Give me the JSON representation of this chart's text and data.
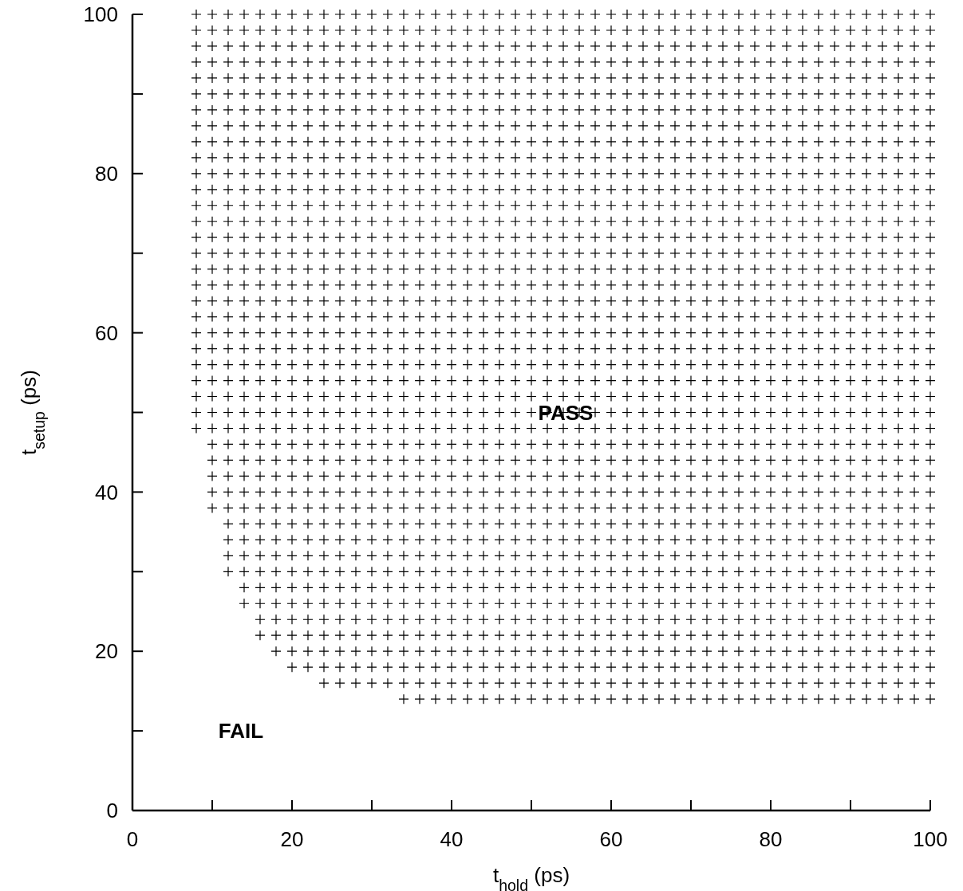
{
  "chart_data": {
    "type": "scatter",
    "xlabel": "t$_{hold}$ (ps)",
    "ylabel": "t$_{setup}$ (ps)",
    "marker": "cross",
    "grid": false,
    "xlim": [
      0,
      100
    ],
    "ylim": [
      0,
      100
    ],
    "xticks": [
      0,
      {
        "value": 10,
        "label": null
      },
      20,
      {
        "value": 30,
        "label": null
      },
      40,
      {
        "value": 50,
        "label": null
      },
      60,
      {
        "value": 70,
        "label": null
      },
      80,
      {
        "value": 90,
        "label": null
      },
      100
    ],
    "yticks": [
      0,
      {
        "value": 10,
        "label": null
      },
      20,
      {
        "value": 30,
        "label": null
      },
      40,
      {
        "value": 50,
        "label": null
      },
      60,
      {
        "value": 70,
        "label": null
      },
      80,
      {
        "value": 90,
        "label": null
      },
      100
    ],
    "annotations": [
      "PASS",
      "FAIL"
    ],
    "x": [
      8,
      10,
      12,
      14,
      16,
      18,
      20,
      22,
      24,
      26,
      28,
      30,
      32,
      34,
      36,
      38,
      40,
      42,
      44,
      46,
      48,
      50,
      52,
      54,
      56,
      58,
      60,
      62,
      64,
      66,
      68,
      70,
      72,
      74,
      76,
      78,
      80,
      82,
      84,
      86,
      88,
      90,
      92,
      94,
      96,
      98,
      100
    ],
    "series": [
      {
        "color": "#000000",
        "values": [
          100,
          100,
          100,
          100,
          100,
          100,
          100,
          100,
          100,
          100,
          100,
          100,
          100,
          100,
          100,
          100,
          100,
          100,
          100,
          100,
          100,
          100,
          100,
          100,
          100,
          100,
          100,
          100,
          100,
          100,
          100,
          100,
          100,
          100,
          100,
          100,
          100,
          100,
          100,
          100,
          100,
          100,
          100,
          100,
          100,
          100,
          100
        ]
      },
      {
        "color": "#000000",
        "values": [
          98,
          98,
          98,
          98,
          98,
          98,
          98,
          98,
          98,
          98,
          98,
          98,
          98,
          98,
          98,
          98,
          98,
          98,
          98,
          98,
          98,
          98,
          98,
          98,
          98,
          98,
          98,
          98,
          98,
          98,
          98,
          98,
          98,
          98,
          98,
          98,
          98,
          98,
          98,
          98,
          98,
          98,
          98,
          98,
          98,
          98,
          98
        ]
      },
      {
        "color": "#000000",
        "values": [
          96,
          96,
          96,
          96,
          96,
          96,
          96,
          96,
          96,
          96,
          96,
          96,
          96,
          96,
          96,
          96,
          96,
          96,
          96,
          96,
          96,
          96,
          96,
          96,
          96,
          96,
          96,
          96,
          96,
          96,
          96,
          96,
          96,
          96,
          96,
          96,
          96,
          96,
          96,
          96,
          96,
          96,
          96,
          96,
          96,
          96,
          96
        ]
      },
      {
        "color": "#000000",
        "values": [
          94,
          94,
          94,
          94,
          94,
          94,
          94,
          94,
          94,
          94,
          94,
          94,
          94,
          94,
          94,
          94,
          94,
          94,
          94,
          94,
          94,
          94,
          94,
          94,
          94,
          94,
          94,
          94,
          94,
          94,
          94,
          94,
          94,
          94,
          94,
          94,
          94,
          94,
          94,
          94,
          94,
          94,
          94,
          94,
          94,
          94,
          94
        ]
      },
      {
        "color": "#000000",
        "values": [
          92,
          92,
          92,
          92,
          92,
          92,
          92,
          92,
          92,
          92,
          92,
          92,
          92,
          92,
          92,
          92,
          92,
          92,
          92,
          92,
          92,
          92,
          92,
          92,
          92,
          92,
          92,
          92,
          92,
          92,
          92,
          92,
          92,
          92,
          92,
          92,
          92,
          92,
          92,
          92,
          92,
          92,
          92,
          92,
          92,
          92,
          92
        ]
      },
      {
        "color": "#000000",
        "values": [
          90,
          90,
          90,
          90,
          90,
          90,
          90,
          90,
          90,
          90,
          90,
          90,
          90,
          90,
          90,
          90,
          90,
          90,
          90,
          90,
          90,
          90,
          90,
          90,
          90,
          90,
          90,
          90,
          90,
          90,
          90,
          90,
          90,
          90,
          90,
          90,
          90,
          90,
          90,
          90,
          90,
          90,
          90,
          90,
          90,
          90,
          90
        ]
      },
      {
        "color": "#000000",
        "values": [
          88,
          88,
          88,
          88,
          88,
          88,
          88,
          88,
          88,
          88,
          88,
          88,
          88,
          88,
          88,
          88,
          88,
          88,
          88,
          88,
          88,
          88,
          88,
          88,
          88,
          88,
          88,
          88,
          88,
          88,
          88,
          88,
          88,
          88,
          88,
          88,
          88,
          88,
          88,
          88,
          88,
          88,
          88,
          88,
          88,
          88,
          88
        ]
      },
      {
        "color": "#000000",
        "values": [
          86,
          86,
          86,
          86,
          86,
          86,
          86,
          86,
          86,
          86,
          86,
          86,
          86,
          86,
          86,
          86,
          86,
          86,
          86,
          86,
          86,
          86,
          86,
          86,
          86,
          86,
          86,
          86,
          86,
          86,
          86,
          86,
          86,
          86,
          86,
          86,
          86,
          86,
          86,
          86,
          86,
          86,
          86,
          86,
          86,
          86,
          86
        ]
      },
      {
        "color": "#000000",
        "values": [
          84,
          84,
          84,
          84,
          84,
          84,
          84,
          84,
          84,
          84,
          84,
          84,
          84,
          84,
          84,
          84,
          84,
          84,
          84,
          84,
          84,
          84,
          84,
          84,
          84,
          84,
          84,
          84,
          84,
          84,
          84,
          84,
          84,
          84,
          84,
          84,
          84,
          84,
          84,
          84,
          84,
          84,
          84,
          84,
          84,
          84,
          84
        ]
      },
      {
        "color": "#000000",
        "values": [
          82,
          82,
          82,
          82,
          82,
          82,
          82,
          82,
          82,
          82,
          82,
          82,
          82,
          82,
          82,
          82,
          82,
          82,
          82,
          82,
          82,
          82,
          82,
          82,
          82,
          82,
          82,
          82,
          82,
          82,
          82,
          82,
          82,
          82,
          82,
          82,
          82,
          82,
          82,
          82,
          82,
          82,
          82,
          82,
          82,
          82,
          82
        ]
      },
      {
        "color": "#000000",
        "values": [
          80,
          80,
          80,
          80,
          80,
          80,
          80,
          80,
          80,
          80,
          80,
          80,
          80,
          80,
          80,
          80,
          80,
          80,
          80,
          80,
          80,
          80,
          80,
          80,
          80,
          80,
          80,
          80,
          80,
          80,
          80,
          80,
          80,
          80,
          80,
          80,
          80,
          80,
          80,
          80,
          80,
          80,
          80,
          80,
          80,
          80,
          80
        ]
      },
      {
        "color": "#000000",
        "values": [
          78,
          78,
          78,
          78,
          78,
          78,
          78,
          78,
          78,
          78,
          78,
          78,
          78,
          78,
          78,
          78,
          78,
          78,
          78,
          78,
          78,
          78,
          78,
          78,
          78,
          78,
          78,
          78,
          78,
          78,
          78,
          78,
          78,
          78,
          78,
          78,
          78,
          78,
          78,
          78,
          78,
          78,
          78,
          78,
          78,
          78,
          78
        ]
      },
      {
        "color": "#000000",
        "values": [
          76,
          76,
          76,
          76,
          76,
          76,
          76,
          76,
          76,
          76,
          76,
          76,
          76,
          76,
          76,
          76,
          76,
          76,
          76,
          76,
          76,
          76,
          76,
          76,
          76,
          76,
          76,
          76,
          76,
          76,
          76,
          76,
          76,
          76,
          76,
          76,
          76,
          76,
          76,
          76,
          76,
          76,
          76,
          76,
          76,
          76,
          76
        ]
      },
      {
        "color": "#000000",
        "values": [
          74,
          74,
          74,
          74,
          74,
          74,
          74,
          74,
          74,
          74,
          74,
          74,
          74,
          74,
          74,
          74,
          74,
          74,
          74,
          74,
          74,
          74,
          74,
          74,
          74,
          74,
          74,
          74,
          74,
          74,
          74,
          74,
          74,
          74,
          74,
          74,
          74,
          74,
          74,
          74,
          74,
          74,
          74,
          74,
          74,
          74,
          74
        ]
      },
      {
        "color": "#000000",
        "values": [
          72,
          72,
          72,
          72,
          72,
          72,
          72,
          72,
          72,
          72,
          72,
          72,
          72,
          72,
          72,
          72,
          72,
          72,
          72,
          72,
          72,
          72,
          72,
          72,
          72,
          72,
          72,
          72,
          72,
          72,
          72,
          72,
          72,
          72,
          72,
          72,
          72,
          72,
          72,
          72,
          72,
          72,
          72,
          72,
          72,
          72,
          72
        ]
      },
      {
        "color": "#000000",
        "values": [
          70,
          70,
          70,
          70,
          70,
          70,
          70,
          70,
          70,
          70,
          70,
          70,
          70,
          70,
          70,
          70,
          70,
          70,
          70,
          70,
          70,
          70,
          70,
          70,
          70,
          70,
          70,
          70,
          70,
          70,
          70,
          70,
          70,
          70,
          70,
          70,
          70,
          70,
          70,
          70,
          70,
          70,
          70,
          70,
          70,
          70,
          70
        ]
      },
      {
        "color": "#000000",
        "values": [
          68,
          68,
          68,
          68,
          68,
          68,
          68,
          68,
          68,
          68,
          68,
          68,
          68,
          68,
          68,
          68,
          68,
          68,
          68,
          68,
          68,
          68,
          68,
          68,
          68,
          68,
          68,
          68,
          68,
          68,
          68,
          68,
          68,
          68,
          68,
          68,
          68,
          68,
          68,
          68,
          68,
          68,
          68,
          68,
          68,
          68,
          68
        ]
      },
      {
        "color": "#000000",
        "values": [
          66,
          66,
          66,
          66,
          66,
          66,
          66,
          66,
          66,
          66,
          66,
          66,
          66,
          66,
          66,
          66,
          66,
          66,
          66,
          66,
          66,
          66,
          66,
          66,
          66,
          66,
          66,
          66,
          66,
          66,
          66,
          66,
          66,
          66,
          66,
          66,
          66,
          66,
          66,
          66,
          66,
          66,
          66,
          66,
          66,
          66,
          66
        ]
      },
      {
        "color": "#000000",
        "values": [
          64,
          64,
          64,
          64,
          64,
          64,
          64,
          64,
          64,
          64,
          64,
          64,
          64,
          64,
          64,
          64,
          64,
          64,
          64,
          64,
          64,
          64,
          64,
          64,
          64,
          64,
          64,
          64,
          64,
          64,
          64,
          64,
          64,
          64,
          64,
          64,
          64,
          64,
          64,
          64,
          64,
          64,
          64,
          64,
          64,
          64,
          64
        ]
      },
      {
        "color": "#000000",
        "values": [
          62,
          62,
          62,
          62,
          62,
          62,
          62,
          62,
          62,
          62,
          62,
          62,
          62,
          62,
          62,
          62,
          62,
          62,
          62,
          62,
          62,
          62,
          62,
          62,
          62,
          62,
          62,
          62,
          62,
          62,
          62,
          62,
          62,
          62,
          62,
          62,
          62,
          62,
          62,
          62,
          62,
          62,
          62,
          62,
          62,
          62,
          62
        ]
      },
      {
        "color": "#000000",
        "values": [
          60,
          60,
          60,
          60,
          60,
          60,
          60,
          60,
          60,
          60,
          60,
          60,
          60,
          60,
          60,
          60,
          60,
          60,
          60,
          60,
          60,
          60,
          60,
          60,
          60,
          60,
          60,
          60,
          60,
          60,
          60,
          60,
          60,
          60,
          60,
          60,
          60,
          60,
          60,
          60,
          60,
          60,
          60,
          60,
          60,
          60,
          60
        ]
      },
      {
        "color": "#000000",
        "values": [
          58,
          58,
          58,
          58,
          58,
          58,
          58,
          58,
          58,
          58,
          58,
          58,
          58,
          58,
          58,
          58,
          58,
          58,
          58,
          58,
          58,
          58,
          58,
          58,
          58,
          58,
          58,
          58,
          58,
          58,
          58,
          58,
          58,
          58,
          58,
          58,
          58,
          58,
          58,
          58,
          58,
          58,
          58,
          58,
          58,
          58,
          58
        ]
      },
      {
        "color": "#000000",
        "values": [
          56,
          56,
          56,
          56,
          56,
          56,
          56,
          56,
          56,
          56,
          56,
          56,
          56,
          56,
          56,
          56,
          56,
          56,
          56,
          56,
          56,
          56,
          56,
          56,
          56,
          56,
          56,
          56,
          56,
          56,
          56,
          56,
          56,
          56,
          56,
          56,
          56,
          56,
          56,
          56,
          56,
          56,
          56,
          56,
          56,
          56,
          56
        ]
      },
      {
        "color": "#000000",
        "values": [
          54,
          54,
          54,
          54,
          54,
          54,
          54,
          54,
          54,
          54,
          54,
          54,
          54,
          54,
          54,
          54,
          54,
          54,
          54,
          54,
          54,
          54,
          54,
          54,
          54,
          54,
          54,
          54,
          54,
          54,
          54,
          54,
          54,
          54,
          54,
          54,
          54,
          54,
          54,
          54,
          54,
          54,
          54,
          54,
          54,
          54,
          54
        ]
      },
      {
        "color": "#000000",
        "values": [
          52,
          52,
          52,
          52,
          52,
          52,
          52,
          52,
          52,
          52,
          52,
          52,
          52,
          52,
          52,
          52,
          52,
          52,
          52,
          52,
          52,
          52,
          52,
          52,
          52,
          52,
          52,
          52,
          52,
          52,
          52,
          52,
          52,
          52,
          52,
          52,
          52,
          52,
          52,
          52,
          52,
          52,
          52,
          52,
          52,
          52,
          52
        ]
      },
      {
        "color": "#000000",
        "values": [
          50,
          50,
          50,
          50,
          50,
          50,
          50,
          50,
          50,
          50,
          50,
          50,
          50,
          50,
          50,
          50,
          50,
          50,
          50,
          50,
          50,
          50,
          50,
          50,
          50,
          50,
          50,
          50,
          50,
          50,
          50,
          50,
          50,
          50,
          50,
          50,
          50,
          50,
          50,
          50,
          50,
          50,
          50,
          50,
          50,
          50,
          50
        ]
      },
      {
        "color": "#000000",
        "values": [
          48,
          48,
          48,
          48,
          48,
          48,
          48,
          48,
          48,
          48,
          48,
          48,
          48,
          48,
          48,
          48,
          48,
          48,
          48,
          48,
          48,
          48,
          48,
          48,
          48,
          48,
          48,
          48,
          48,
          48,
          48,
          48,
          48,
          48,
          48,
          48,
          48,
          48,
          48,
          48,
          48,
          48,
          48,
          48,
          48,
          48,
          48
        ]
      },
      {
        "color": "#000000",
        "values": [
          null,
          46,
          46,
          46,
          46,
          46,
          46,
          46,
          46,
          46,
          46,
          46,
          46,
          46,
          46,
          46,
          46,
          46,
          46,
          46,
          46,
          46,
          46,
          46,
          46,
          46,
          46,
          46,
          46,
          46,
          46,
          46,
          46,
          46,
          46,
          46,
          46,
          46,
          46,
          46,
          46,
          46,
          46,
          46,
          46,
          46,
          46
        ]
      },
      {
        "color": "#000000",
        "values": [
          null,
          44,
          44,
          44,
          44,
          44,
          44,
          44,
          44,
          44,
          44,
          44,
          44,
          44,
          44,
          44,
          44,
          44,
          44,
          44,
          44,
          44,
          44,
          44,
          44,
          44,
          44,
          44,
          44,
          44,
          44,
          44,
          44,
          44,
          44,
          44,
          44,
          44,
          44,
          44,
          44,
          44,
          44,
          44,
          44,
          44,
          44
        ]
      },
      {
        "color": "#000000",
        "values": [
          null,
          42,
          42,
          42,
          42,
          42,
          42,
          42,
          42,
          42,
          42,
          42,
          42,
          42,
          42,
          42,
          42,
          42,
          42,
          42,
          42,
          42,
          42,
          42,
          42,
          42,
          42,
          42,
          42,
          42,
          42,
          42,
          42,
          42,
          42,
          42,
          42,
          42,
          42,
          42,
          42,
          42,
          42,
          42,
          42,
          42,
          42
        ]
      },
      {
        "color": "#000000",
        "values": [
          null,
          40,
          40,
          40,
          40,
          40,
          40,
          40,
          40,
          40,
          40,
          40,
          40,
          40,
          40,
          40,
          40,
          40,
          40,
          40,
          40,
          40,
          40,
          40,
          40,
          40,
          40,
          40,
          40,
          40,
          40,
          40,
          40,
          40,
          40,
          40,
          40,
          40,
          40,
          40,
          40,
          40,
          40,
          40,
          40,
          40,
          40
        ]
      },
      {
        "color": "#000000",
        "values": [
          null,
          38,
          38,
          38,
          38,
          38,
          38,
          38,
          38,
          38,
          38,
          38,
          38,
          38,
          38,
          38,
          38,
          38,
          38,
          38,
          38,
          38,
          38,
          38,
          38,
          38,
          38,
          38,
          38,
          38,
          38,
          38,
          38,
          38,
          38,
          38,
          38,
          38,
          38,
          38,
          38,
          38,
          38,
          38,
          38,
          38,
          38
        ]
      },
      {
        "color": "#000000",
        "values": [
          null,
          null,
          36,
          36,
          36,
          36,
          36,
          36,
          36,
          36,
          36,
          36,
          36,
          36,
          36,
          36,
          36,
          36,
          36,
          36,
          36,
          36,
          36,
          36,
          36,
          36,
          36,
          36,
          36,
          36,
          36,
          36,
          36,
          36,
          36,
          36,
          36,
          36,
          36,
          36,
          36,
          36,
          36,
          36,
          36,
          36,
          36
        ]
      },
      {
        "color": "#000000",
        "values": [
          null,
          null,
          34,
          34,
          34,
          34,
          34,
          34,
          34,
          34,
          34,
          34,
          34,
          34,
          34,
          34,
          34,
          34,
          34,
          34,
          34,
          34,
          34,
          34,
          34,
          34,
          34,
          34,
          34,
          34,
          34,
          34,
          34,
          34,
          34,
          34,
          34,
          34,
          34,
          34,
          34,
          34,
          34,
          34,
          34,
          34,
          34
        ]
      },
      {
        "color": "#000000",
        "values": [
          null,
          null,
          32,
          32,
          32,
          32,
          32,
          32,
          32,
          32,
          32,
          32,
          32,
          32,
          32,
          32,
          32,
          32,
          32,
          32,
          32,
          32,
          32,
          32,
          32,
          32,
          32,
          32,
          32,
          32,
          32,
          32,
          32,
          32,
          32,
          32,
          32,
          32,
          32,
          32,
          32,
          32,
          32,
          32,
          32,
          32,
          32
        ]
      },
      {
        "color": "#000000",
        "values": [
          null,
          null,
          30,
          30,
          30,
          30,
          30,
          30,
          30,
          30,
          30,
          30,
          30,
          30,
          30,
          30,
          30,
          30,
          30,
          30,
          30,
          30,
          30,
          30,
          30,
          30,
          30,
          30,
          30,
          30,
          30,
          30,
          30,
          30,
          30,
          30,
          30,
          30,
          30,
          30,
          30,
          30,
          30,
          30,
          30,
          30,
          30
        ]
      },
      {
        "color": "#000000",
        "values": [
          null,
          null,
          null,
          28,
          28,
          28,
          28,
          28,
          28,
          28,
          28,
          28,
          28,
          28,
          28,
          28,
          28,
          28,
          28,
          28,
          28,
          28,
          28,
          28,
          28,
          28,
          28,
          28,
          28,
          28,
          28,
          28,
          28,
          28,
          28,
          28,
          28,
          28,
          28,
          28,
          28,
          28,
          28,
          28,
          28,
          28,
          28
        ]
      },
      {
        "color": "#000000",
        "values": [
          null,
          null,
          null,
          26,
          26,
          26,
          26,
          26,
          26,
          26,
          26,
          26,
          26,
          26,
          26,
          26,
          26,
          26,
          26,
          26,
          26,
          26,
          26,
          26,
          26,
          26,
          26,
          26,
          26,
          26,
          26,
          26,
          26,
          26,
          26,
          26,
          26,
          26,
          26,
          26,
          26,
          26,
          26,
          26,
          26,
          26,
          26
        ]
      },
      {
        "color": "#000000",
        "values": [
          null,
          null,
          null,
          null,
          24,
          24,
          24,
          24,
          24,
          24,
          24,
          24,
          24,
          24,
          24,
          24,
          24,
          24,
          24,
          24,
          24,
          24,
          24,
          24,
          24,
          24,
          24,
          24,
          24,
          24,
          24,
          24,
          24,
          24,
          24,
          24,
          24,
          24,
          24,
          24,
          24,
          24,
          24,
          24,
          24,
          24,
          24
        ]
      },
      {
        "color": "#000000",
        "values": [
          null,
          null,
          null,
          null,
          22,
          22,
          22,
          22,
          22,
          22,
          22,
          22,
          22,
          22,
          22,
          22,
          22,
          22,
          22,
          22,
          22,
          22,
          22,
          22,
          22,
          22,
          22,
          22,
          22,
          22,
          22,
          22,
          22,
          22,
          22,
          22,
          22,
          22,
          22,
          22,
          22,
          22,
          22,
          22,
          22,
          22,
          22
        ]
      },
      {
        "color": "#000000",
        "values": [
          null,
          null,
          null,
          null,
          null,
          20,
          20,
          20,
          20,
          20,
          20,
          20,
          20,
          20,
          20,
          20,
          20,
          20,
          20,
          20,
          20,
          20,
          20,
          20,
          20,
          20,
          20,
          20,
          20,
          20,
          20,
          20,
          20,
          20,
          20,
          20,
          20,
          20,
          20,
          20,
          20,
          20,
          20,
          20,
          20,
          20,
          20
        ]
      },
      {
        "color": "#000000",
        "values": [
          null,
          null,
          null,
          null,
          null,
          null,
          18,
          18,
          18,
          18,
          18,
          18,
          18,
          18,
          18,
          18,
          18,
          18,
          18,
          18,
          18,
          18,
          18,
          18,
          18,
          18,
          18,
          18,
          18,
          18,
          18,
          18,
          18,
          18,
          18,
          18,
          18,
          18,
          18,
          18,
          18,
          18,
          18,
          18,
          18,
          18,
          18
        ]
      },
      {
        "color": "#000000",
        "values": [
          null,
          null,
          null,
          null,
          null,
          null,
          null,
          null,
          16,
          16,
          16,
          16,
          16,
          16,
          16,
          16,
          16,
          16,
          16,
          16,
          16,
          16,
          16,
          16,
          16,
          16,
          16,
          16,
          16,
          16,
          16,
          16,
          16,
          16,
          16,
          16,
          16,
          16,
          16,
          16,
          16,
          16,
          16,
          16,
          16,
          16,
          16
        ]
      },
      {
        "color": "#000000",
        "values": [
          null,
          null,
          null,
          null,
          null,
          null,
          null,
          null,
          null,
          null,
          null,
          null,
          null,
          14,
          14,
          14,
          14,
          14,
          14,
          14,
          14,
          14,
          14,
          14,
          14,
          14,
          14,
          14,
          14,
          14,
          14,
          14,
          14,
          14,
          14,
          14,
          14,
          14,
          14,
          14,
          14,
          14,
          14,
          14,
          14,
          14,
          14
        ]
      }
    ]
  }
}
